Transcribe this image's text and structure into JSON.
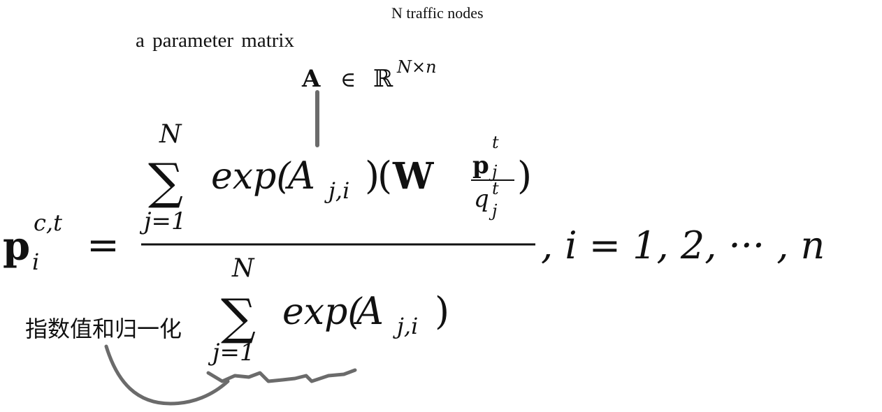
{
  "annotations": {
    "traffic_nodes": "N traffic nodes",
    "parameter_matrix": "a parameter matrix",
    "normalization": "指数值和归一化"
  },
  "matrix_def": {
    "symbol": "A",
    "in": "∈",
    "space": "ℝ",
    "superscript": "N×n"
  },
  "formula": {
    "lhs_symbol": "p",
    "lhs_sub": "i",
    "lhs_sup": "c,t",
    "equals": "=",
    "sum_upper": "N",
    "sum_sign": "∑",
    "sum_lower": "j=1",
    "exp_text": "exp(",
    "A": "A",
    "A_sub": "j,i",
    "close_paren": ")",
    "open_paren": "(",
    "W": "W",
    "frac_num": "p",
    "frac_num_sub": "j",
    "frac_num_sup": "t",
    "frac_den": "q",
    "frac_den_sub": "j",
    "frac_den_sup": "t",
    "tail": ", i = 1, 2, ··· , n"
  }
}
